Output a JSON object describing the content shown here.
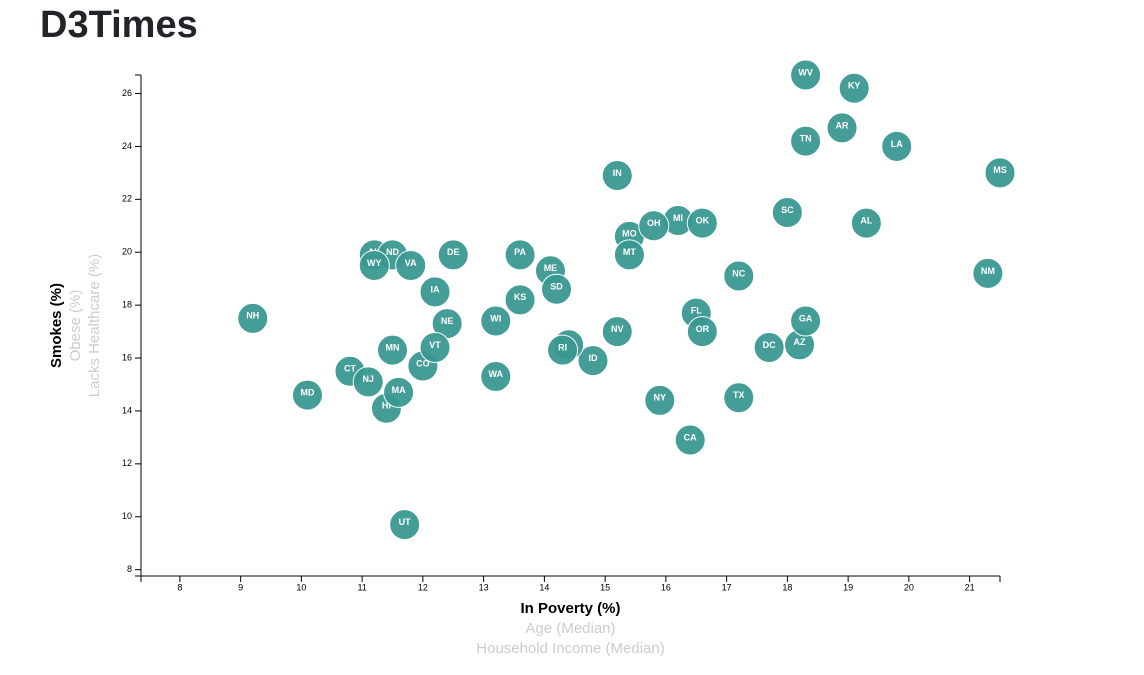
{
  "header": {
    "title": "D3Times"
  },
  "chart_data": {
    "type": "scatter",
    "color": "#3a9892",
    "x_axis_labels": [
      "In Poverty (%)",
      "Age (Median)",
      "Household Income (Median)"
    ],
    "y_axis_labels": [
      "Smokes (%)",
      "Obese (%)",
      "Lacks Healthcare (%)"
    ],
    "labels": [
      "AL",
      "AK",
      "AZ",
      "AR",
      "CA",
      "CO",
      "CT",
      "DE",
      "DC",
      "FL",
      "GA",
      "HI",
      "ID",
      "IL",
      "IN",
      "IA",
      "KS",
      "KY",
      "LA",
      "ME",
      "MD",
      "MA",
      "MI",
      "MN",
      "MS",
      "MO",
      "MT",
      "NE",
      "NV",
      "NH",
      "NJ",
      "NM",
      "NY",
      "NC",
      "ND",
      "OH",
      "OK",
      "OR",
      "PA",
      "RI",
      "SC",
      "SD",
      "TN",
      "TX",
      "UT",
      "VT",
      "VA",
      "WA",
      "WV",
      "WI",
      "WY"
    ],
    "x": [
      19.3,
      11.2,
      18.2,
      18.9,
      16.4,
      12,
      10.8,
      12.5,
      17.7,
      16.5,
      18.3,
      11.4,
      14.8,
      14.4,
      15.2,
      12.2,
      13.6,
      19.1,
      19.8,
      14.1,
      10.1,
      11.6,
      16.2,
      11.5,
      21.5,
      15.4,
      15.4,
      12.4,
      15.2,
      9.2,
      11.1,
      21.3,
      15.9,
      17.2,
      11.5,
      15.8,
      16.6,
      16.6,
      13.6,
      14.3,
      18,
      14.2,
      18.3,
      17.2,
      11.7,
      12.2,
      11.8,
      13.2,
      18.3,
      13.2,
      11.2
    ],
    "values": [
      21.1,
      19.9,
      16.5,
      24.7,
      12.9,
      15.7,
      15.5,
      19.9,
      16.4,
      17.7,
      17.4,
      14.1,
      15.9,
      16.5,
      22.9,
      18.5,
      18.2,
      26.2,
      24,
      19.3,
      14.6,
      14.7,
      21.2,
      16.3,
      23,
      20.6,
      19.9,
      17.3,
      17,
      17.5,
      15.1,
      19.2,
      14.4,
      19.1,
      19.9,
      21,
      21.1,
      17,
      19.9,
      16.3,
      21.5,
      18.6,
      24.2,
      14.5,
      9.7,
      16.4,
      19.5,
      15.3,
      26.7,
      17.4,
      19.5
    ],
    "xlim": [
      7.36,
      21.5
    ],
    "ylim": [
      7.76,
      26.7
    ],
    "xticks": [
      8,
      9,
      10,
      11,
      12,
      13,
      14,
      15,
      16,
      17,
      18,
      19,
      20,
      21
    ],
    "yticks": [
      8,
      10,
      12,
      14,
      16,
      18,
      20,
      22,
      24,
      26
    ]
  }
}
